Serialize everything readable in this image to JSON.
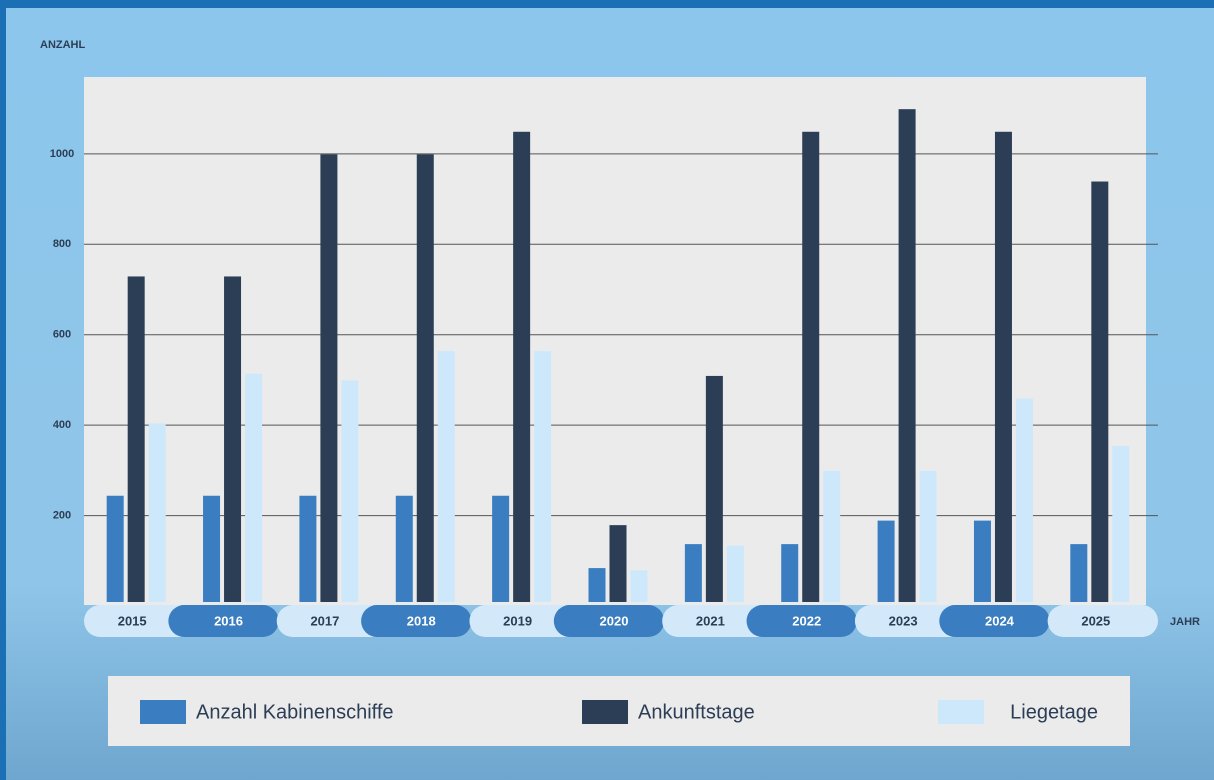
{
  "chart_data": {
    "type": "bar",
    "y_label": "ANZAHL",
    "x_label": "JAHR",
    "categories": [
      "2015",
      "2016",
      "2017",
      "2018",
      "2019",
      "2020",
      "2021",
      "2022",
      "2023",
      "2024",
      "2025"
    ],
    "series": [
      {
        "name": "Anzahl Kabinenschiffe",
        "color": "#3a7dc0",
        "values": [
          235,
          235,
          235,
          235,
          235,
          75,
          128,
          128,
          180,
          180,
          128
        ]
      },
      {
        "name": "Ankunftstage",
        "color": "#2c3e55",
        "values": [
          720,
          720,
          990,
          990,
          1040,
          170,
          500,
          1040,
          1090,
          1040,
          930
        ]
      },
      {
        "name": "Liegetage",
        "color": "#cde8fb",
        "values": [
          395,
          505,
          490,
          555,
          555,
          70,
          125,
          290,
          290,
          450,
          345
        ]
      }
    ],
    "ylim": [
      0,
      1170
    ],
    "yticks": [
      200,
      400,
      600,
      800,
      1000
    ],
    "grid": true
  }
}
